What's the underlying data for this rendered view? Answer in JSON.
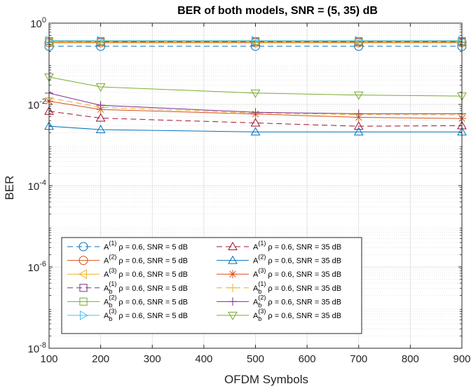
{
  "chart_data": {
    "type": "line",
    "title": "BER of both models, SNR = (5, 35) dB",
    "xlabel": "OFDM Symbols",
    "ylabel": "BER",
    "xlim": [
      100,
      900
    ],
    "ylim": [
      1e-08,
      1
    ],
    "y_scale": "log",
    "grid": true,
    "legend_position": "bottom-left",
    "x": [
      100,
      200,
      500,
      700,
      900
    ],
    "xticks": [
      "100",
      "200",
      "300",
      "400",
      "500",
      "600",
      "700",
      "800",
      "900"
    ],
    "yticks": [
      {
        "base": "10",
        "exp": "-8"
      },
      {
        "base": "10",
        "exp": "-6"
      },
      {
        "base": "10",
        "exp": "-4"
      },
      {
        "base": "10",
        "exp": "-2"
      },
      {
        "base": "10",
        "exp": "0"
      }
    ],
    "series": [
      {
        "label": {
          "base": "A",
          "sub": "",
          "sup": "(1)",
          "rest": " ρ = 0.6, SNR = 5 dB"
        },
        "values": [
          0.27,
          0.27,
          0.27,
          0.27,
          0.27
        ],
        "color": "#0072BD",
        "dash": "dash",
        "marker": "circle"
      },
      {
        "label": {
          "base": "A",
          "sub": "",
          "sup": "(2)",
          "rest": " ρ = 0.6, SNR = 5 dB"
        },
        "values": [
          0.33,
          0.33,
          0.33,
          0.33,
          0.33
        ],
        "color": "#D95319",
        "dash": "solid",
        "marker": "circle"
      },
      {
        "label": {
          "base": "A",
          "sub": "",
          "sup": "(3)",
          "rest": " ρ = 0.6, SNR = 5 dB"
        },
        "values": [
          0.34,
          0.34,
          0.34,
          0.34,
          0.34
        ],
        "color": "#EDB120",
        "dash": "solid",
        "marker": "triangle-left"
      },
      {
        "label": {
          "base": "A",
          "sub": "b",
          "sup": "(1)",
          "rest": " ρ = 0.6, SNR = 5 dB"
        },
        "values": [
          0.36,
          0.35,
          0.35,
          0.35,
          0.35
        ],
        "color": "#7E2F8E",
        "dash": "dash",
        "marker": "square"
      },
      {
        "label": {
          "base": "A",
          "sub": "b",
          "sup": "(2)",
          "rest": " ρ = 0.6, SNR = 5 dB"
        },
        "values": [
          0.36,
          0.36,
          0.36,
          0.36,
          0.36
        ],
        "color": "#77AC30",
        "dash": "solid",
        "marker": "square"
      },
      {
        "label": {
          "base": "A",
          "sub": "b",
          "sup": "(3)",
          "rest": " ρ = 0.6, SNR = 5 dB"
        },
        "values": [
          0.37,
          0.37,
          0.37,
          0.37,
          0.37
        ],
        "color": "#4DBEEE",
        "dash": "solid",
        "marker": "triangle-right"
      },
      {
        "label": {
          "base": "A",
          "sub": "",
          "sup": "(1)",
          "rest": " ρ = 0.6, SNR = 35 dB"
        },
        "values": [
          0.0068,
          0.0046,
          0.0035,
          0.0029,
          0.003
        ],
        "color": "#A2142F",
        "dash": "dash",
        "marker": "triangle-up"
      },
      {
        "label": {
          "base": "A",
          "sub": "",
          "sup": "(2)",
          "rest": " ρ = 0.6, SNR = 35 dB"
        },
        "values": [
          0.0029,
          0.0024,
          0.0021,
          0.0021,
          0.0021
        ],
        "color": "#0072BD",
        "dash": "solid",
        "marker": "triangle-up"
      },
      {
        "label": {
          "base": "A",
          "sub": "",
          "sup": "(3)",
          "rest": " ρ = 0.6, SNR = 35 dB"
        },
        "values": [
          0.012,
          0.0075,
          0.0058,
          0.0048,
          0.0045
        ],
        "color": "#D95319",
        "dash": "solid",
        "marker": "asterisk"
      },
      {
        "label": {
          "base": "A",
          "sub": "b",
          "sup": "(1)",
          "rest": " ρ = 0.6, SNR = 35 dB"
        },
        "values": [
          0.0145,
          0.0085,
          0.0061,
          0.0056,
          0.0055
        ],
        "color": "#EDB120",
        "dash": "dash",
        "marker": "plus"
      },
      {
        "label": {
          "base": "A",
          "sub": "b",
          "sup": "(2)",
          "rest": " ρ = 0.6, SNR = 35 dB"
        },
        "values": [
          0.019,
          0.0095,
          0.0064,
          0.0059,
          0.0059
        ],
        "color": "#7E2F8E",
        "dash": "solid",
        "marker": "plus"
      },
      {
        "label": {
          "base": "A",
          "sub": "b",
          "sup": "(3)",
          "rest": " ρ = 0.6, SNR = 35 dB"
        },
        "values": [
          0.047,
          0.027,
          0.019,
          0.017,
          0.016
        ],
        "color": "#77AC30",
        "dash": "solid",
        "marker": "triangle-down"
      }
    ]
  }
}
